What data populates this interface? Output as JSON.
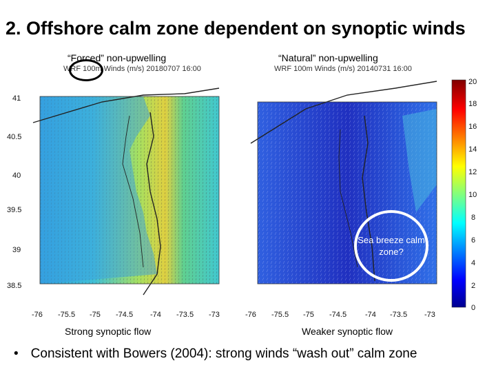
{
  "slide": {
    "title": "2. Offshore calm zone dependent on synoptic winds",
    "bullet_marker": "•",
    "bullet_text": "Consistent with Bowers (2004): strong winds “wash out” calm zone"
  },
  "left_panel": {
    "title": "“Forced” non-upwelling",
    "map_header": "WRF 100m Winds (m/s) 20180707 16:00",
    "caption": "Strong synoptic flow",
    "y_ticks": [
      "41",
      "40.5",
      "40",
      "39.5",
      "39",
      "38.5"
    ],
    "x_ticks": [
      "-76",
      "-75.5",
      "-75",
      "-74.5",
      "-74",
      "-73.5",
      "-73"
    ]
  },
  "right_panel": {
    "title": "“Natural” non-upwelling",
    "map_header": "WRF 100m Winds (m/s) 20140731 16:00",
    "caption": "Weaker synoptic flow",
    "x_ticks": [
      "-76",
      "-75.5",
      "-75",
      "-74.5",
      "-74",
      "-73.5",
      "-73"
    ],
    "callout": "Sea breeze calm zone?"
  },
  "colorbar": {
    "ticks": [
      "20",
      "18",
      "16",
      "14",
      "12",
      "10",
      "8",
      "6",
      "4",
      "2",
      "0"
    ],
    "colormap": "jet"
  }
}
